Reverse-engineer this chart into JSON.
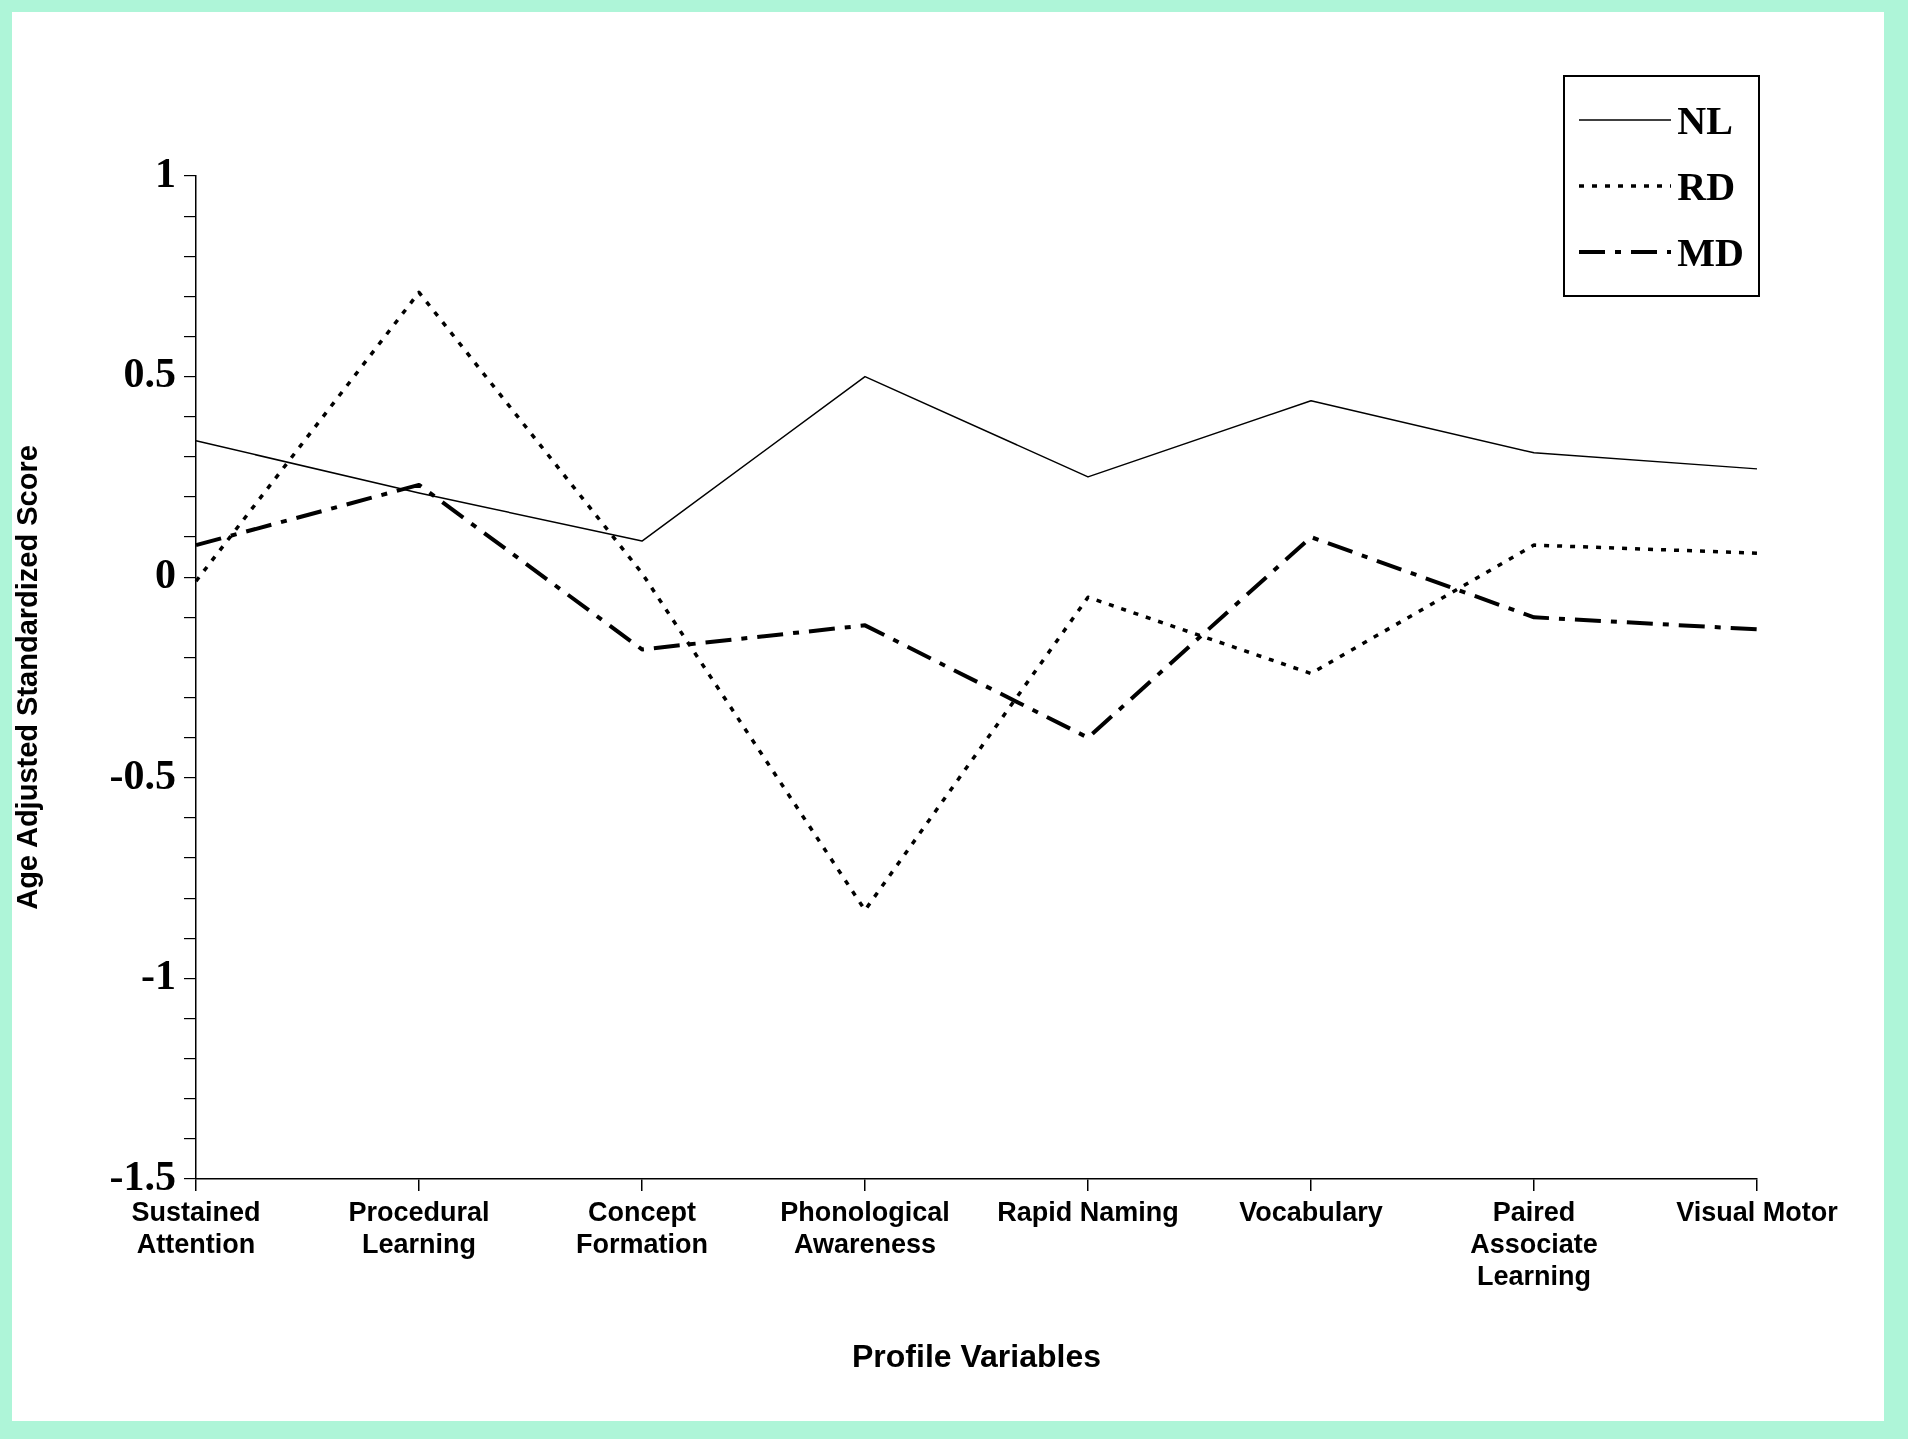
{
  "chart_data": {
    "type": "line",
    "xlabel": "Profile Variables",
    "ylabel": "Age Adjusted Standardized Score",
    "categories": [
      "Sustained Attention",
      "Procedural Learning",
      "Concept Formation",
      "Phonological Awareness",
      "Rapid Naming",
      "Vocabulary",
      "Paired Associate Learning",
      "Visual Motor"
    ],
    "series": [
      {
        "name": "NL",
        "color": "#000000",
        "line_style": "solid",
        "values": [
          0.34,
          0.21,
          0.09,
          0.5,
          0.25,
          0.44,
          0.31,
          0.27
        ]
      },
      {
        "name": "RD",
        "color": "#000000",
        "line_style": "dotted",
        "values": [
          -0.01,
          0.71,
          0.01,
          -0.83,
          -0.05,
          -0.24,
          0.08,
          0.06
        ]
      },
      {
        "name": "MD",
        "color": "#000000",
        "line_style": "dashed",
        "values": [
          0.08,
          0.23,
          -0.18,
          -0.12,
          -0.4,
          0.1,
          -0.1,
          -0.13
        ]
      }
    ],
    "ylim": [
      -1.5,
      1
    ],
    "yticks": [
      -1.5,
      {
        "value": -1.4,
        "label": null
      },
      {
        "value": -1.3,
        "label": null
      },
      {
        "value": -1.2,
        "label": null
      },
      {
        "value": -1.1,
        "label": null
      },
      -1,
      {
        "value": -0.9,
        "label": null
      },
      {
        "value": -0.8,
        "label": null
      },
      {
        "value": -0.7,
        "label": null
      },
      {
        "value": -0.6,
        "label": null
      },
      -0.5,
      {
        "value": -0.4,
        "label": null
      },
      {
        "value": -0.3,
        "label": null
      },
      {
        "value": -0.2,
        "label": null
      },
      {
        "value": -0.1,
        "label": null
      },
      0,
      {
        "value": 0.1,
        "label": null
      },
      {
        "value": 0.2,
        "label": null
      },
      {
        "value": 0.3,
        "label": null
      },
      {
        "value": 0.4,
        "label": null
      },
      0.5,
      {
        "value": 0.6,
        "label": null
      },
      {
        "value": 0.7,
        "label": null
      },
      {
        "value": 0.8,
        "label": null
      },
      {
        "value": 0.9,
        "label": null
      },
      1
    ],
    "grid": false,
    "legend": "top right",
    "marker": "none"
  }
}
